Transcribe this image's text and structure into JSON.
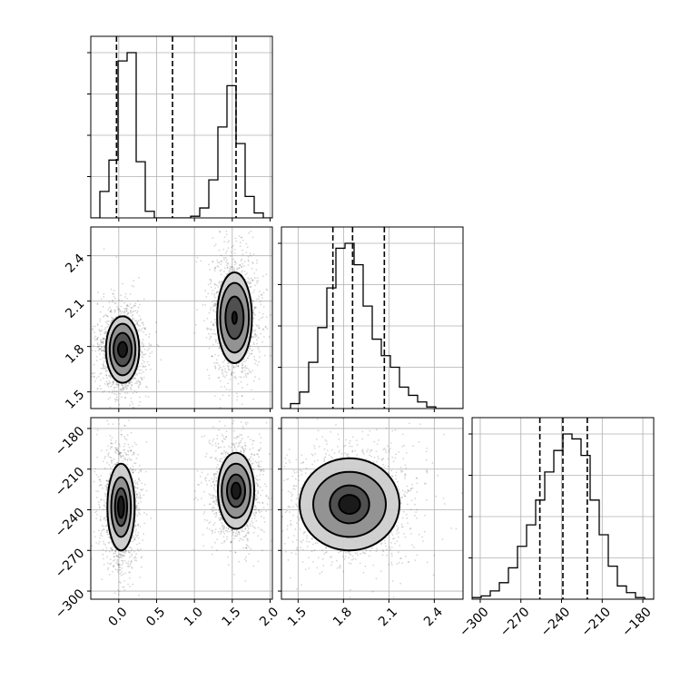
{
  "chart_data": {
    "type": "corner",
    "parameters": [
      {
        "ticks": [
          0.0,
          0.5,
          1.0,
          1.5,
          2.0
        ],
        "tick_labels": [
          "0.0",
          "0.5",
          "1.0",
          "1.5",
          "2.0"
        ],
        "range": [
          -0.37,
          2.03
        ]
      },
      {
        "ticks": [
          1.5,
          1.8,
          2.1,
          2.4
        ],
        "tick_labels": [
          "1.5",
          "1.8",
          "2.1",
          "2.4"
        ],
        "range": [
          1.39,
          2.59
        ]
      },
      {
        "ticks": [
          -300,
          -270,
          -240,
          -210,
          -180
        ],
        "tick_labels": [
          "−300",
          "−270",
          "−240",
          "−210",
          "−180"
        ],
        "range": [
          -306,
          -172
        ]
      }
    ],
    "marginals": [
      {
        "bin_edges": [
          -0.37,
          -0.25,
          -0.13,
          -0.01,
          0.11,
          0.23,
          0.35,
          0.47,
          0.59,
          0.71,
          0.83,
          0.95,
          1.07,
          1.19,
          1.31,
          1.43,
          1.55,
          1.67,
          1.79,
          1.91,
          2.03
        ],
        "counts": [
          0,
          0.16,
          0.35,
          0.95,
          1.0,
          0.34,
          0.04,
          0,
          0,
          0,
          0,
          0.01,
          0.06,
          0.23,
          0.55,
          0.8,
          0.45,
          0.13,
          0.03,
          0
        ],
        "quantiles": [
          -0.03,
          0.71,
          1.55
        ]
      },
      {
        "bin_edges": [
          1.39,
          1.45,
          1.51,
          1.57,
          1.63,
          1.69,
          1.75,
          1.81,
          1.87,
          1.93,
          1.99,
          2.05,
          2.11,
          2.17,
          2.23,
          2.29,
          2.35,
          2.41,
          2.47,
          2.53,
          2.59
        ],
        "counts": [
          0,
          0.03,
          0.1,
          0.28,
          0.49,
          0.73,
          0.97,
          1.0,
          0.87,
          0.62,
          0.42,
          0.32,
          0.25,
          0.13,
          0.08,
          0.04,
          0.01,
          0,
          0,
          0
        ],
        "quantiles": [
          1.73,
          1.86,
          2.07
        ]
      },
      {
        "bin_edges": [
          -306,
          -299.3,
          -292.6,
          -285.9,
          -279.2,
          -272.5,
          -265.8,
          -259.1,
          -252.4,
          -245.7,
          -239,
          -232.3,
          -225.6,
          -218.9,
          -212.2,
          -205.5,
          -198.8,
          -192.1,
          -185.4,
          -178.7,
          -172
        ],
        "counts": [
          0.01,
          0.02,
          0.05,
          0.1,
          0.19,
          0.32,
          0.45,
          0.6,
          0.77,
          0.9,
          1.0,
          0.97,
          0.87,
          0.6,
          0.39,
          0.2,
          0.08,
          0.04,
          0.01,
          0
        ],
        "quantiles": [
          -256,
          -239,
          -221
        ]
      }
    ],
    "joint_2d": [
      {
        "row": 1,
        "col": 0,
        "clusters": [
          {
            "center": [
              0.05,
              1.78
            ],
            "contour_half_widths": [
              [
                0.06,
                0.05
              ],
              [
                0.12,
                0.11
              ],
              [
                0.17,
                0.17
              ],
              [
                0.22,
                0.22
              ]
            ]
          },
          {
            "center": [
              1.53,
              1.99
            ],
            "contour_half_widths": [
              [
                0.03,
                0.04
              ],
              [
                0.12,
                0.14
              ],
              [
                0.19,
                0.23
              ],
              [
                0.23,
                0.3
              ]
            ]
          }
        ]
      },
      {
        "row": 2,
        "col": 0,
        "clusters": [
          {
            "center": [
              0.03,
              -238
            ],
            "contour_half_widths": [
              [
                0.04,
                8
              ],
              [
                0.08,
                14
              ],
              [
                0.13,
                22
              ],
              [
                0.18,
                32
              ]
            ]
          },
          {
            "center": [
              1.55,
              -226
            ],
            "contour_half_widths": [
              [
                0.06,
                6
              ],
              [
                0.12,
                12
              ],
              [
                0.19,
                20
              ],
              [
                0.24,
                28
              ]
            ]
          }
        ]
      },
      {
        "row": 2,
        "col": 1,
        "clusters": [
          {
            "center": [
              1.84,
              -236
            ],
            "contour_half_widths": [
              [
                0.07,
                7
              ],
              [
                0.13,
                14
              ],
              [
                0.24,
                24
              ],
              [
                0.33,
                34
              ]
            ]
          }
        ]
      }
    ],
    "xlabel": "",
    "ylabel": "",
    "title": ""
  }
}
